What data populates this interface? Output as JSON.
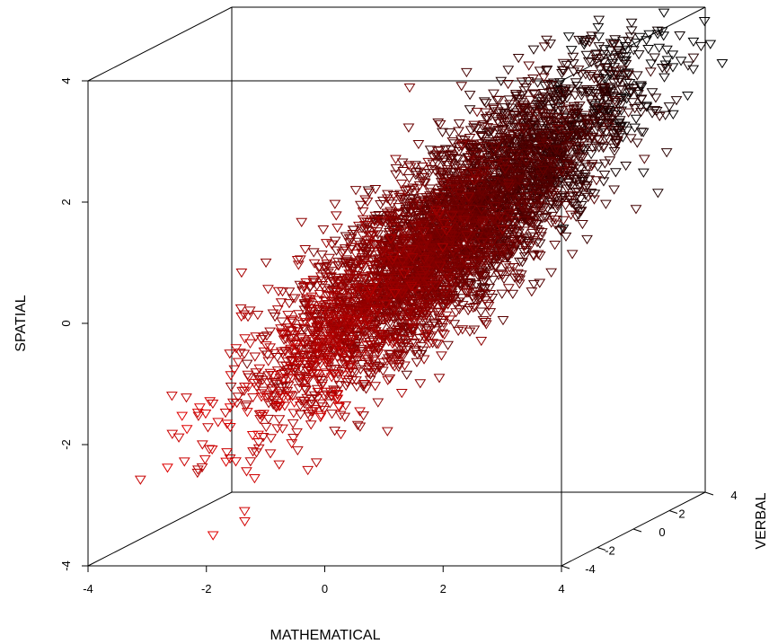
{
  "chart_data": {
    "type": "scatter",
    "projection": "3d",
    "title": "",
    "xlabel": "MATHEMATICAL",
    "ylabel": "VERBAL",
    "zlabel": "SPATIAL",
    "xlim": [
      -4,
      4
    ],
    "ylim": [
      -4,
      4
    ],
    "zlim": [
      -4,
      4
    ],
    "x_ticks": [
      "-4",
      "-2",
      "0",
      "2",
      "4"
    ],
    "y_ticks": [
      "-4",
      "-2",
      "0",
      "2",
      "4"
    ],
    "z_ticks": [
      "-4",
      "-2",
      "0",
      "2",
      "4"
    ],
    "grid": false,
    "legend": "none",
    "marker": "triangle-down",
    "color_gradient": {
      "low": "#e00000",
      "high": "#000000",
      "by": "VERBAL"
    },
    "n_points": 5000,
    "distribution": {
      "type": "multivariate-normal",
      "mean": [
        0.8,
        0.3,
        0.8
      ],
      "sd": [
        1.2,
        1.2,
        1.2
      ],
      "correlation": 0.8
    },
    "sample_points": [
      {
        "x": -2.9,
        "y": -3.2,
        "z": -2.5
      },
      {
        "x": -2.1,
        "y": -3.3,
        "z": -3.6
      },
      {
        "x": -0.6,
        "y": -2.2,
        "z": -1.3
      },
      {
        "x": 0.8,
        "y": 0.3,
        "z": 0.8
      },
      {
        "x": 2.0,
        "y": 1.5,
        "z": 2.3
      },
      {
        "x": 3.6,
        "y": 2.5,
        "z": 3.4
      },
      {
        "x": 4.3,
        "y": 3.3,
        "z": 3.5
      }
    ]
  }
}
